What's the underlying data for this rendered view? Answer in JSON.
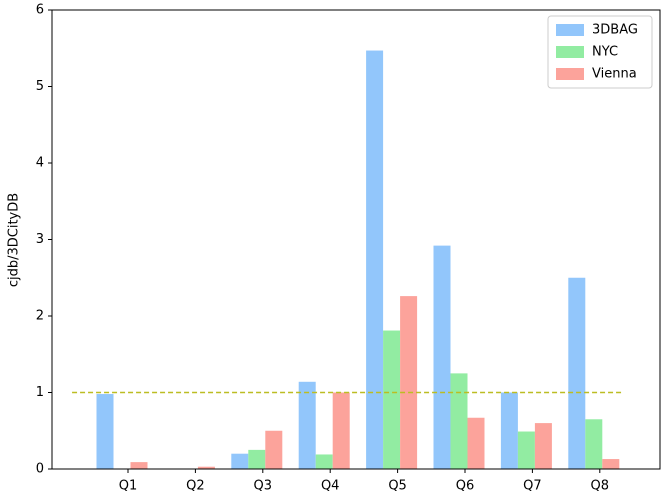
{
  "chart_data": {
    "type": "bar",
    "ylabel": "cjdb/3DCityDB",
    "categories": [
      "Q1",
      "Q2",
      "Q3",
      "Q4",
      "Q5",
      "Q6",
      "Q7",
      "Q8"
    ],
    "series": [
      {
        "name": "3DBAG",
        "color": "#92c6fb",
        "values": [
          0.98,
          0,
          0.2,
          1.14,
          5.47,
          2.92,
          1.0,
          2.5
        ]
      },
      {
        "name": "NYC",
        "color": "#92eca2",
        "values": [
          0,
          0,
          0.25,
          0.19,
          1.81,
          1.25,
          0.49,
          0.65
        ]
      },
      {
        "name": "Vienna",
        "color": "#fca39b",
        "values": [
          0.09,
          0.03,
          0.5,
          1.0,
          2.26,
          0.67,
          0.6,
          0.13
        ]
      }
    ],
    "reference_line": {
      "value": 1,
      "color": "#bcbd22"
    },
    "ylim": [
      0,
      6
    ],
    "yticks": [
      0,
      1,
      2,
      3,
      4,
      5,
      6
    ],
    "legend": "upper right"
  }
}
